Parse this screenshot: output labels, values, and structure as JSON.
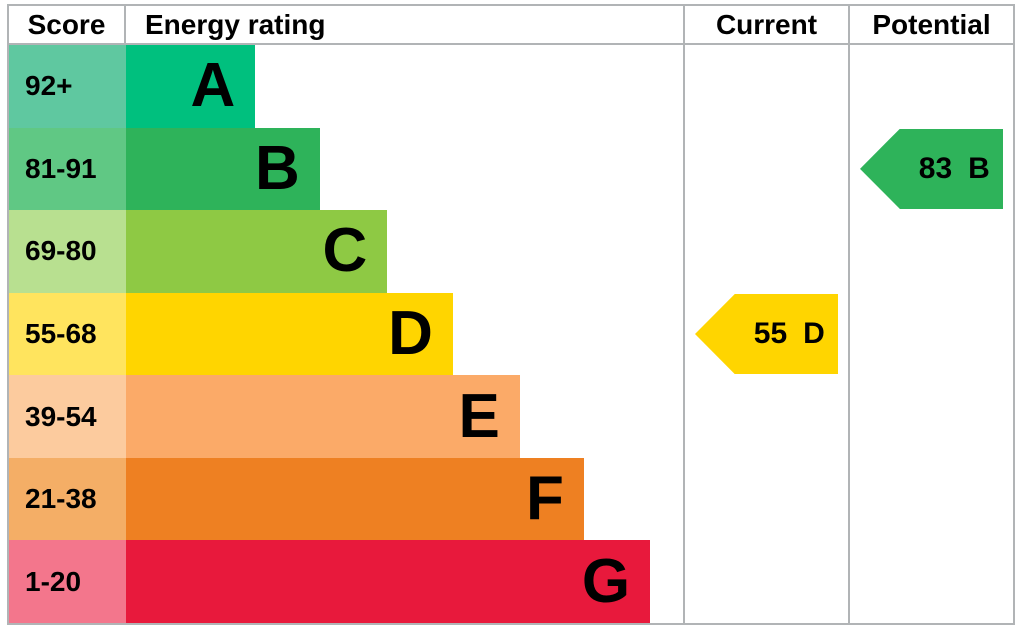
{
  "header": {
    "score": "Score",
    "rating": "Energy rating",
    "current": "Current",
    "potential": "Potential"
  },
  "bands": [
    {
      "score": "92+",
      "letter": "A",
      "color": "#00c07e",
      "tint": "#5fc8a0",
      "width_pct": 23.2
    },
    {
      "score": "81-91",
      "letter": "B",
      "color": "#2eb35a",
      "tint": "#60c884",
      "width_pct": 34.8
    },
    {
      "score": "69-80",
      "letter": "C",
      "color": "#8ec944",
      "tint": "#b8e090",
      "width_pct": 46.9
    },
    {
      "score": "55-68",
      "letter": "D",
      "color": "#ffd500",
      "tint": "#ffe45e",
      "width_pct": 58.7
    },
    {
      "score": "39-54",
      "letter": "E",
      "color": "#fbaa68",
      "tint": "#fccb9e",
      "width_pct": 70.7
    },
    {
      "score": "21-38",
      "letter": "F",
      "color": "#ee8022",
      "tint": "#f4ae66",
      "width_pct": 82.2
    },
    {
      "score": "1-20",
      "letter": "G",
      "color": "#e8193c",
      "tint": "#f3768c",
      "width_pct": 94.1
    }
  ],
  "current": {
    "value": "55",
    "letter": "D",
    "band_index": 3,
    "arrow_color": "#ffd500"
  },
  "potential": {
    "value": "83",
    "letter": "B",
    "band_index": 1,
    "arrow_color": "#2eb35a"
  },
  "colors": {
    "border": "#b1b4b6",
    "text": "#000000"
  },
  "chart_data": {
    "type": "bar",
    "title": "Energy rating (EPC band chart)",
    "categories": [
      "A",
      "B",
      "C",
      "D",
      "E",
      "F",
      "G"
    ],
    "score_ranges": [
      "92+",
      "81-91",
      "69-80",
      "55-68",
      "39-54",
      "21-38",
      "1-20"
    ],
    "bar_lengths_pct_of_column": [
      23.2,
      34.8,
      46.9,
      58.7,
      70.7,
      82.2,
      94.1
    ],
    "band_colors": [
      "#00c07e",
      "#2eb35a",
      "#8ec944",
      "#ffd500",
      "#fbaa68",
      "#ee8022",
      "#e8193c"
    ],
    "score_cell_tints": [
      "#5fc8a0",
      "#60c884",
      "#b8e090",
      "#ffe45e",
      "#fccb9e",
      "#f4ae66",
      "#f3768c"
    ],
    "markers": [
      {
        "label": "Current",
        "score": 55,
        "band": "D",
        "color": "#ffd500"
      },
      {
        "label": "Potential",
        "score": 83,
        "band": "B",
        "color": "#2eb35a"
      }
    ],
    "xlabel": "",
    "ylabel": "",
    "grid": false,
    "legend_position": "none"
  }
}
